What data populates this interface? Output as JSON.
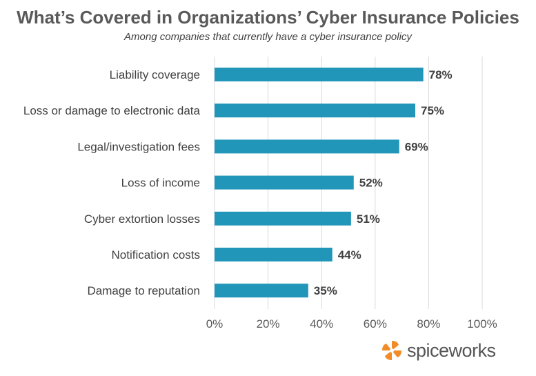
{
  "chart_data": {
    "type": "bar",
    "orientation": "horizontal",
    "title": "What’s Covered in Organizations’ Cyber Insurance Policies",
    "subtitle": "Among companies that currently have a cyber insurance policy",
    "categories": [
      "Liability coverage",
      "Loss or damage to electronic data",
      "Legal/investigation fees",
      "Loss of income",
      "Cyber extortion losses",
      "Notification costs",
      "Damage to reputation"
    ],
    "values": [
      78,
      75,
      69,
      52,
      51,
      44,
      35
    ],
    "data_labels": [
      "78%",
      "75%",
      "69%",
      "52%",
      "51%",
      "44%",
      "35%"
    ],
    "xlim": [
      0,
      100
    ],
    "x_ticks": [
      0,
      20,
      40,
      60,
      80,
      100
    ],
    "x_tick_labels": [
      "0%",
      "20%",
      "40%",
      "60%",
      "80%",
      "100%"
    ],
    "grid": "vertical",
    "bar_color": "#2196B9",
    "grid_color": "#D9D9D9"
  },
  "brand": {
    "name": "spiceworks",
    "logo_icon": "spiceworks-logo-icon",
    "logo_color": "#F28C28"
  }
}
